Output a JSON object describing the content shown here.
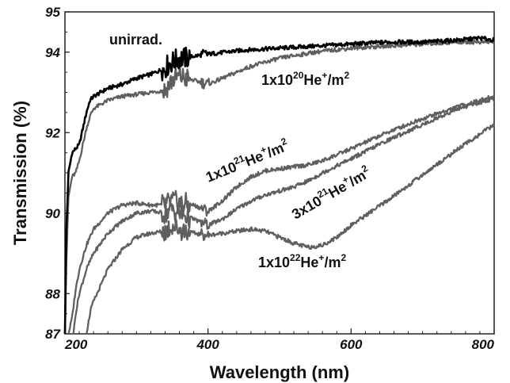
{
  "chart_data": {
    "type": "line",
    "title": "",
    "xlabel": "Wavelength (nm)",
    "ylabel": "Transmission (%)",
    "xlim": [
      200,
      800
    ],
    "ylim": [
      87,
      95
    ],
    "xticks": [
      200,
      400,
      600,
      800
    ],
    "yticks": [
      87,
      88,
      90,
      92,
      94,
      95
    ],
    "grid": false,
    "legend": "none",
    "annotations": {
      "unirrad": "unirrad.",
      "a20_base": "1x10",
      "a20_exp": "20",
      "a20_tail": "He",
      "a20_plus": "+",
      "a20_unit": "/m",
      "a20_sq": "2",
      "a21_base": "1x10",
      "a21_exp": "21",
      "a21_tail": "He",
      "a21_plus": "+",
      "a21_unit": "/m",
      "a21_sq": "2",
      "a3_base": "3x10",
      "a3_exp": "21",
      "a3_tail": "He",
      "a3_plus": "+",
      "a3_unit": "/m",
      "a3_sq": "2",
      "a22_base": "1x10",
      "a22_exp": "22",
      "a22_tail": "He",
      "a22_plus": "+",
      "a22_unit": "/m",
      "a22_sq": "2"
    },
    "series": [
      {
        "name": "unirrad.",
        "color": "#000000",
        "x": [
          200,
          202,
          205,
          210,
          215,
          220,
          225,
          230,
          235,
          240,
          250,
          260,
          280,
          300,
          320,
          340,
          345,
          350,
          360,
          370,
          380,
          400,
          450,
          500,
          550,
          600,
          650,
          700,
          750,
          780,
          800
        ],
        "y": [
          87.0,
          89.6,
          91.0,
          91.5,
          91.6,
          91.7,
          92.1,
          92.5,
          92.8,
          92.9,
          93.0,
          93.1,
          93.2,
          93.35,
          93.45,
          93.6,
          93.7,
          93.75,
          93.85,
          93.85,
          93.9,
          93.95,
          94.05,
          94.1,
          94.15,
          94.2,
          94.25,
          94.25,
          94.3,
          94.35,
          94.3
        ]
      },
      {
        "name": "1x10^20He+/m2",
        "color": "#5f5f5f",
        "x": [
          200,
          202,
          205,
          210,
          215,
          220,
          225,
          230,
          235,
          240,
          250,
          260,
          280,
          300,
          320,
          340,
          345,
          350,
          360,
          370,
          380,
          400,
          420,
          440,
          460,
          480,
          500,
          550,
          600,
          650,
          700,
          750,
          800
        ],
        "y": [
          87.0,
          88.8,
          90.4,
          90.9,
          91.0,
          91.3,
          91.7,
          92.1,
          92.4,
          92.6,
          92.7,
          92.8,
          92.9,
          92.95,
          93.0,
          93.05,
          93.2,
          93.3,
          93.4,
          93.35,
          93.3,
          93.2,
          93.35,
          93.5,
          93.65,
          93.75,
          93.85,
          94.0,
          94.1,
          94.15,
          94.2,
          94.25,
          94.25
        ]
      },
      {
        "name": "1x10^21He+/m2",
        "color": "#5f5f5f",
        "x": [
          205,
          210,
          215,
          220,
          230,
          240,
          260,
          280,
          300,
          320,
          340,
          350,
          360,
          380,
          400,
          420,
          440,
          460,
          480,
          500,
          520,
          540,
          560,
          600,
          650,
          700,
          750,
          800
        ],
        "y": [
          87.0,
          87.4,
          88.1,
          88.6,
          89.2,
          89.6,
          90.0,
          90.2,
          90.25,
          90.2,
          90.2,
          90.3,
          90.25,
          90.2,
          90.05,
          90.3,
          90.65,
          90.9,
          91.05,
          91.1,
          91.15,
          91.2,
          91.3,
          91.6,
          92.0,
          92.35,
          92.65,
          92.9
        ]
      },
      {
        "name": "3x10^21He+/m2",
        "color": "#5f5f5f",
        "x": [
          212,
          215,
          220,
          230,
          240,
          260,
          280,
          300,
          320,
          340,
          350,
          360,
          380,
          400,
          420,
          440,
          460,
          480,
          500,
          520,
          540,
          560,
          600,
          650,
          700,
          750,
          800
        ],
        "y": [
          87.0,
          87.5,
          88.0,
          88.6,
          89.0,
          89.5,
          89.8,
          90.0,
          90.05,
          90.0,
          90.1,
          90.0,
          89.85,
          89.7,
          89.85,
          90.1,
          90.3,
          90.45,
          90.55,
          90.65,
          90.8,
          91.0,
          91.35,
          91.8,
          92.2,
          92.6,
          92.85
        ]
      },
      {
        "name": "1x10^22He+/m2",
        "color": "#5f5f5f",
        "x": [
          230,
          233,
          236,
          240,
          250,
          260,
          280,
          300,
          320,
          340,
          350,
          360,
          380,
          400,
          420,
          440,
          460,
          480,
          500,
          520,
          540,
          560,
          580,
          600,
          650,
          700,
          750,
          800
        ],
        "y": [
          87.0,
          87.3,
          87.6,
          87.8,
          88.2,
          88.6,
          89.1,
          89.4,
          89.5,
          89.55,
          89.7,
          89.6,
          89.5,
          89.45,
          89.5,
          89.55,
          89.6,
          89.55,
          89.4,
          89.25,
          89.15,
          89.2,
          89.4,
          89.7,
          90.3,
          90.95,
          91.6,
          92.2
        ]
      }
    ]
  }
}
